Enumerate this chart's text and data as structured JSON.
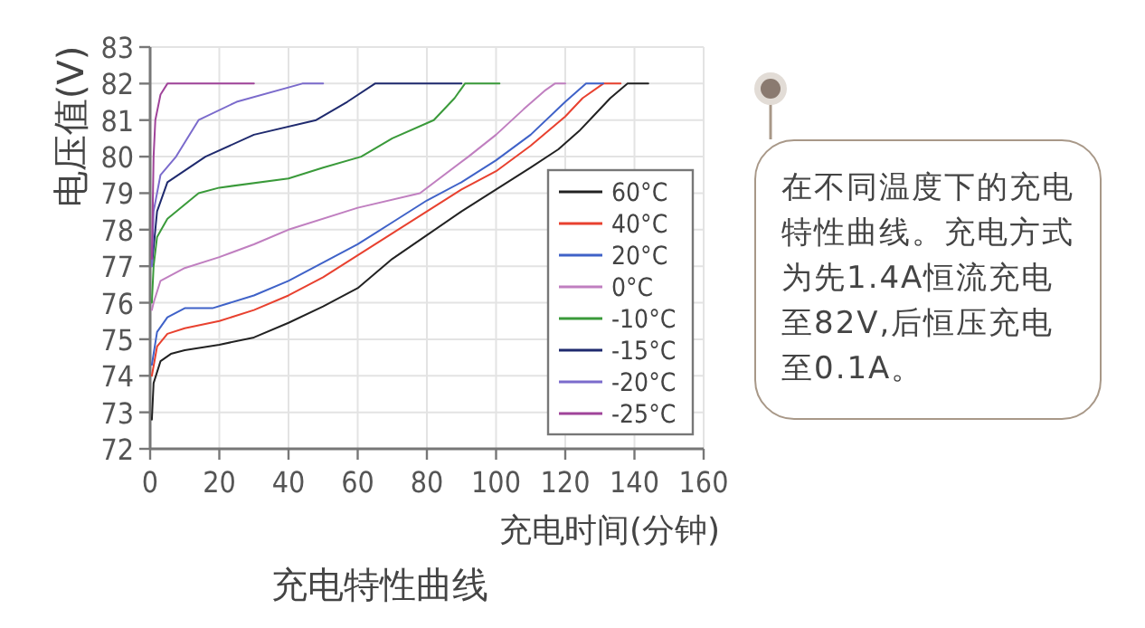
{
  "chart_data": {
    "type": "line",
    "title": "充电特性曲线",
    "xlabel": "充电时间(分钟)",
    "ylabel": "电压值(V)",
    "xlim": [
      0,
      160
    ],
    "ylim": [
      72,
      83
    ],
    "xticks": [
      0,
      20,
      40,
      60,
      80,
      100,
      120,
      140,
      160
    ],
    "yticks": [
      72,
      73,
      74,
      75,
      76,
      77,
      78,
      79,
      80,
      81,
      82,
      83
    ],
    "grid": true,
    "legend": "bottom right",
    "marker": "none",
    "line_style": "solid",
    "annotations": [
      "在不同温度下的充电特性曲线。充电方式为先1.4A恒流充电至82V,后恒压充电至0.1A。"
    ],
    "series": [
      {
        "name": "60°C",
        "color": "#222222",
        "x": [
          0.5,
          1,
          3,
          6,
          10,
          20,
          30,
          40,
          50,
          60,
          70,
          80,
          90,
          100,
          110,
          118,
          124,
          128,
          133,
          138,
          144
        ],
        "values": [
          72.8,
          73.8,
          74.4,
          74.6,
          74.7,
          74.85,
          75.05,
          75.45,
          75.9,
          76.4,
          77.2,
          77.85,
          78.5,
          79.1,
          79.7,
          80.2,
          80.7,
          81.1,
          81.6,
          82,
          82
        ]
      },
      {
        "name": "40°C",
        "color": "#e8412f",
        "x": [
          0.5,
          2,
          5,
          10,
          20,
          30,
          40,
          50,
          60,
          70,
          80,
          90,
          100,
          110,
          120,
          125,
          131,
          136
        ],
        "values": [
          74,
          74.8,
          75.15,
          75.3,
          75.5,
          75.8,
          76.2,
          76.7,
          77.3,
          77.9,
          78.5,
          79.1,
          79.6,
          80.3,
          81.1,
          81.6,
          82,
          82
        ]
      },
      {
        "name": "20°C",
        "color": "#3f62c8",
        "x": [
          0.5,
          2,
          5,
          10,
          18,
          30,
          40,
          50,
          60,
          70,
          80,
          90,
          100,
          110,
          120,
          126,
          131
        ],
        "values": [
          74.3,
          75.2,
          75.6,
          75.85,
          75.85,
          76.2,
          76.6,
          77.1,
          77.6,
          78.2,
          78.8,
          79.3,
          79.9,
          80.6,
          81.5,
          82,
          82
        ]
      },
      {
        "name": "0°C",
        "color": "#c07fc0",
        "x": [
          0.5,
          1,
          3,
          10,
          20,
          30,
          40,
          60,
          78,
          92,
          100,
          108,
          114,
          117,
          120
        ],
        "values": [
          75.8,
          76,
          76.6,
          76.95,
          77.25,
          77.6,
          78,
          78.6,
          79,
          80,
          80.6,
          81.3,
          81.8,
          82,
          82
        ]
      },
      {
        "name": "-10°C",
        "color": "#3a9a3a",
        "x": [
          0.5,
          1,
          2,
          5,
          14,
          20,
          40,
          50,
          61,
          70,
          82,
          88,
          91,
          101
        ],
        "values": [
          76,
          77,
          77.8,
          78.3,
          79,
          79.15,
          79.4,
          79.7,
          80,
          80.5,
          81,
          81.6,
          82,
          82
        ]
      },
      {
        "name": "-15°C",
        "color": "#1f2a6e",
        "x": [
          0.5,
          1,
          2,
          5,
          16,
          30,
          48,
          57,
          65,
          90
        ],
        "values": [
          77,
          77.5,
          78.5,
          79.3,
          80,
          80.6,
          81,
          81.5,
          82,
          82
        ]
      },
      {
        "name": "-20°C",
        "color": "#7b6bcc",
        "x": [
          0.5,
          1,
          3,
          7.5,
          14,
          25,
          44,
          50
        ],
        "values": [
          77,
          78.5,
          79.5,
          80,
          81,
          81.5,
          82,
          82
        ]
      },
      {
        "name": "-25°C",
        "color": "#a0449a",
        "x": [
          0.5,
          1,
          1.5,
          3,
          5,
          30
        ],
        "values": [
          77.2,
          80,
          81,
          81.7,
          82,
          82
        ]
      }
    ]
  }
}
